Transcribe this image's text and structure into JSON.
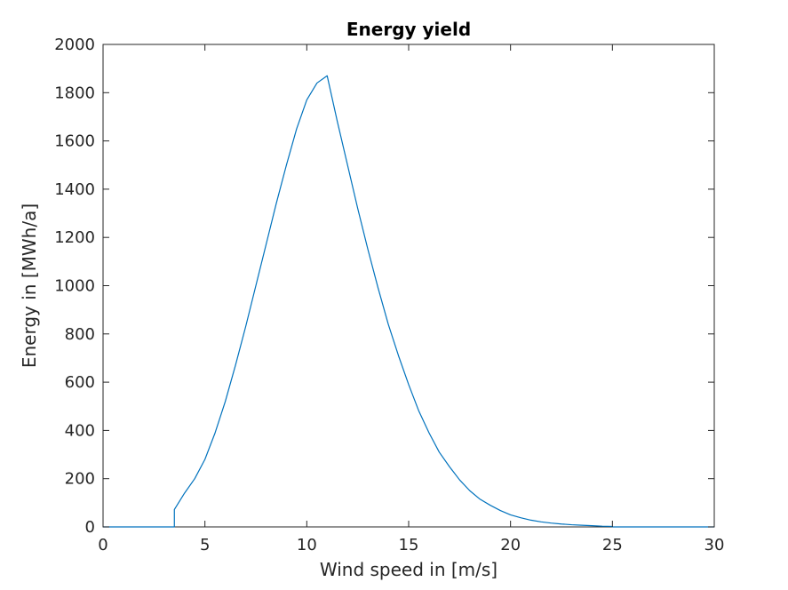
{
  "chart_data": {
    "type": "line",
    "title": "Energy yield",
    "xlabel": "Wind speed in [m/s]",
    "ylabel": "Energy in [MWh/a]",
    "xlim": [
      0,
      30
    ],
    "ylim": [
      0,
      2000
    ],
    "xticks": [
      0,
      5,
      10,
      15,
      20,
      25,
      30
    ],
    "yticks": [
      0,
      200,
      400,
      600,
      800,
      1000,
      1200,
      1400,
      1600,
      1800,
      2000
    ],
    "grid": false,
    "legend": "none",
    "colors": {
      "line": "#0072bd",
      "axes": "#262626"
    },
    "series": [
      {
        "x": [
          0,
          3.5,
          3.5,
          4,
          4.5,
          5,
          5.5,
          6,
          6.5,
          7,
          7.5,
          8,
          8.5,
          9,
          9.5,
          10,
          10.5,
          11,
          11.5,
          12,
          12.5,
          13,
          13.5,
          14,
          14.5,
          15,
          15.5,
          16,
          16.5,
          17,
          17.5,
          18,
          18.5,
          19,
          19.5,
          20,
          20.5,
          21,
          21.5,
          22,
          22.5,
          23,
          23.5,
          24,
          24.5,
          25,
          25,
          30
        ],
        "y": [
          0,
          0,
          72,
          140,
          200,
          280,
          390,
          520,
          670,
          830,
          1000,
          1170,
          1340,
          1500,
          1650,
          1770,
          1840,
          1870,
          1680,
          1500,
          1320,
          1150,
          990,
          840,
          710,
          590,
          480,
          390,
          310,
          250,
          195,
          150,
          115,
          90,
          68,
          50,
          38,
          28,
          21,
          16,
          12,
          9,
          7,
          5,
          3,
          2,
          0,
          0
        ]
      }
    ]
  }
}
